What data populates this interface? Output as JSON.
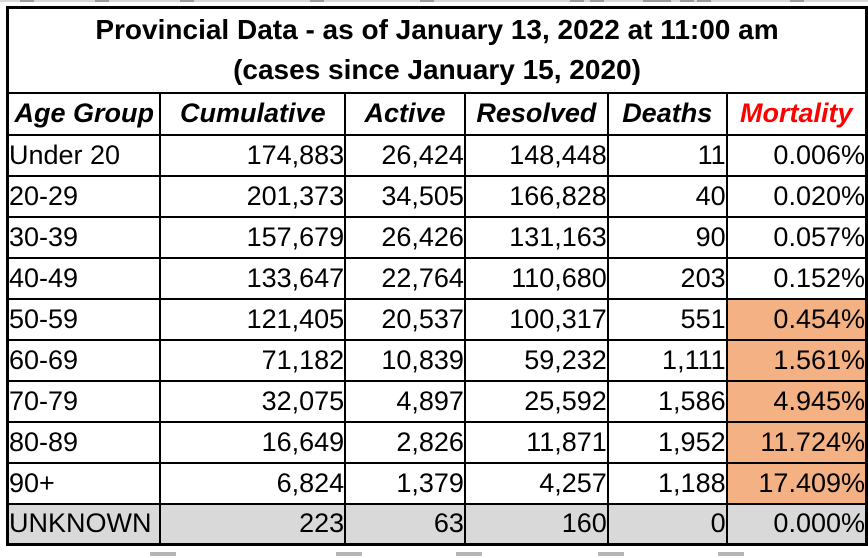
{
  "table": {
    "title": "Provincial Data - as of January 13, 2022 at 11:00 am",
    "subtitle": "(cases since January 15, 2020)",
    "headers": [
      "Age Group",
      "Cumulative",
      "Active",
      "Resolved",
      "Deaths",
      "Mortality"
    ],
    "rows": [
      {
        "age_group": "Under 20",
        "cumulative": "174,883",
        "active": "26,424",
        "resolved": "148,448",
        "deaths": "11",
        "mortality": "0.006%",
        "mortality_highlight": false,
        "row_shaded": false
      },
      {
        "age_group": "20-29",
        "cumulative": "201,373",
        "active": "34,505",
        "resolved": "166,828",
        "deaths": "40",
        "mortality": "0.020%",
        "mortality_highlight": false,
        "row_shaded": false
      },
      {
        "age_group": "30-39",
        "cumulative": "157,679",
        "active": "26,426",
        "resolved": "131,163",
        "deaths": "90",
        "mortality": "0.057%",
        "mortality_highlight": false,
        "row_shaded": false
      },
      {
        "age_group": "40-49",
        "cumulative": "133,647",
        "active": "22,764",
        "resolved": "110,680",
        "deaths": "203",
        "mortality": "0.152%",
        "mortality_highlight": false,
        "row_shaded": false
      },
      {
        "age_group": "50-59",
        "cumulative": "121,405",
        "active": "20,537",
        "resolved": "100,317",
        "deaths": "551",
        "mortality": "0.454%",
        "mortality_highlight": true,
        "row_shaded": false
      },
      {
        "age_group": "60-69",
        "cumulative": "71,182",
        "active": "10,839",
        "resolved": "59,232",
        "deaths": "1,111",
        "mortality": "1.561%",
        "mortality_highlight": true,
        "row_shaded": false
      },
      {
        "age_group": "70-79",
        "cumulative": "32,075",
        "active": "4,897",
        "resolved": "25,592",
        "deaths": "1,586",
        "mortality": "4.945%",
        "mortality_highlight": true,
        "row_shaded": false
      },
      {
        "age_group": "80-89",
        "cumulative": "16,649",
        "active": "2,826",
        "resolved": "11,871",
        "deaths": "1,952",
        "mortality": "11.724%",
        "mortality_highlight": true,
        "row_shaded": false
      },
      {
        "age_group": "90+",
        "cumulative": "6,824",
        "active": "1,379",
        "resolved": "4,257",
        "deaths": "1,188",
        "mortality": "17.409%",
        "mortality_highlight": true,
        "row_shaded": false
      },
      {
        "age_group": "UNKNOWN",
        "cumulative": "223",
        "active": "63",
        "resolved": "160",
        "deaths": "0",
        "mortality": "0.000%",
        "mortality_highlight": false,
        "row_shaded": true
      }
    ]
  },
  "colors": {
    "mortality_header": "#ff0000",
    "mortality_highlight": "#f4b183",
    "unknown_row_shade": "#d9d9d9",
    "border": "#000000"
  },
  "chart_data": {
    "type": "table",
    "title": "Provincial Data - as of January 13, 2022 at 11:00 am (cases since January 15, 2020)",
    "columns": [
      "Age Group",
      "Cumulative",
      "Active",
      "Resolved",
      "Deaths",
      "Mortality"
    ],
    "rows": [
      [
        "Under 20",
        174883,
        26424,
        148448,
        11,
        "0.006%"
      ],
      [
        "20-29",
        201373,
        34505,
        166828,
        40,
        "0.020%"
      ],
      [
        "30-39",
        157679,
        26426,
        131163,
        90,
        "0.057%"
      ],
      [
        "40-49",
        133647,
        22764,
        110680,
        203,
        "0.152%"
      ],
      [
        "50-59",
        121405,
        20537,
        100317,
        551,
        "0.454%"
      ],
      [
        "60-69",
        71182,
        10839,
        59232,
        1111,
        "1.561%"
      ],
      [
        "70-79",
        32075,
        4897,
        25592,
        1586,
        "4.945%"
      ],
      [
        "80-89",
        16649,
        2826,
        11871,
        1952,
        "11.724%"
      ],
      [
        "90+",
        6824,
        1379,
        4257,
        1188,
        "17.409%"
      ],
      [
        "UNKNOWN",
        223,
        63,
        160,
        0,
        "0.000%"
      ]
    ],
    "notes": "Mortality cells highlighted orange for rows 50-59 through 90+; UNKNOWN row shaded gray; Mortality column header in red."
  }
}
